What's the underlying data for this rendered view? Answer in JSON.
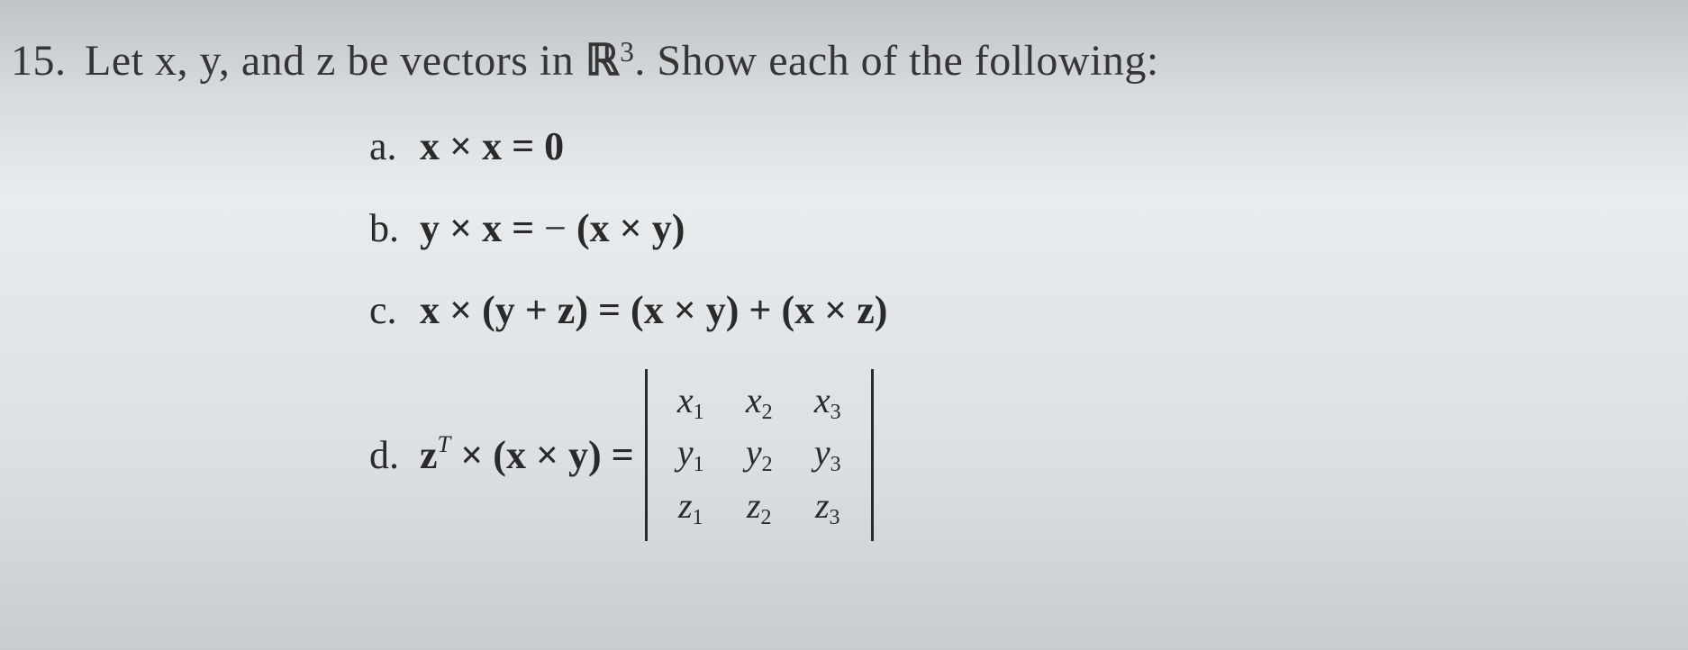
{
  "problem": {
    "number": "15.",
    "text_before": "Let ",
    "vars": "x, y,",
    "text_mid1": " and ",
    "var_z": "z",
    "text_mid2": " be vectors in ",
    "space_symbol": "ℝ",
    "space_power": "3",
    "text_after": ". Show each of the following:"
  },
  "parts": {
    "a": {
      "label": "a.",
      "expr": "x × x = 0"
    },
    "b": {
      "label": "b.",
      "expr_lhs": "y × x = ",
      "expr_neg": " − ",
      "expr_rhs": "(x × y)"
    },
    "c": {
      "label": "c.",
      "expr": "x × (y + z) = (x × y) + (x × z)"
    },
    "d": {
      "label": "d.",
      "lhs_z": "z",
      "lhs_T": "T",
      "lhs_rest": " × (x × y) = ",
      "matrix": {
        "row1": [
          "x₁",
          "x₂",
          "x₃"
        ],
        "row2": [
          "y₁",
          "y₂",
          "y₃"
        ],
        "row3": [
          "z₁",
          "z₂",
          "z₃"
        ],
        "r1": {
          "v": "x",
          "s1": "1",
          "s2": "2",
          "s3": "3"
        },
        "r2": {
          "v": "y",
          "s1": "1",
          "s2": "2",
          "s3": "3"
        },
        "r3": {
          "v": "z",
          "s1": "1",
          "s2": "2",
          "s3": "3"
        }
      }
    }
  },
  "style": {
    "text_color": "#2a2a2a",
    "background_gradient": [
      "#c0c4c8",
      "#e8ecee",
      "#c8ccd0"
    ],
    "problem_fontsize": 48,
    "part_fontsize": 44,
    "det_fontsize": 40,
    "font_family": "Times New Roman"
  }
}
